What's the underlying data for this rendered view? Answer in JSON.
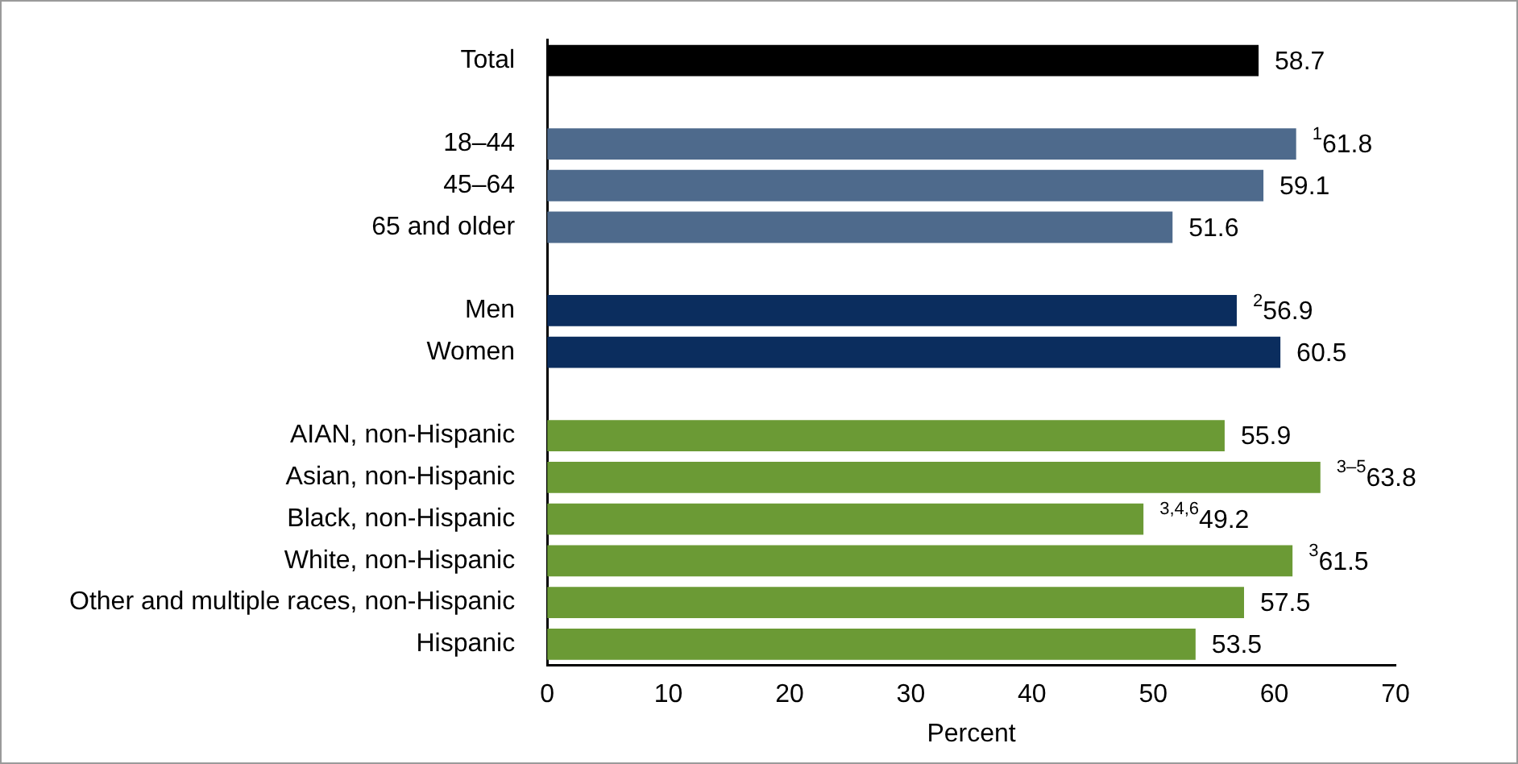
{
  "chart_data": {
    "type": "bar",
    "orientation": "horizontal",
    "xlabel": "Percent",
    "categories": [
      "Total",
      null,
      "18–44",
      "45–64",
      "65 and older",
      null,
      "Men",
      "Women",
      null,
      "AIAN, non-Hispanic",
      "Asian, non-Hispanic",
      "Black, non-Hispanic",
      "White, non-Hispanic",
      "Other and multiple races, non-Hispanic",
      "Hispanic"
    ],
    "values": [
      58.7,
      null,
      61.8,
      59.1,
      51.6,
      null,
      56.9,
      60.5,
      null,
      55.9,
      63.8,
      49.2,
      61.5,
      57.5,
      53.5
    ],
    "colors": [
      "#000000",
      null,
      "#4e6a8c",
      "#4e6a8c",
      "#4e6a8c",
      null,
      "#0b2d5e",
      "#0b2d5e",
      null,
      "#6b9a35",
      "#6b9a35",
      "#6b9a35",
      "#6b9a35",
      "#6b9a35",
      "#6b9a35"
    ],
    "value_labels": [
      "58.7",
      null,
      "$^{1}$61.8",
      "59.1",
      "51.6",
      null,
      "$^{2}$56.9",
      "60.5",
      null,
      "55.9",
      "$^{3–5}$63.8",
      "$^{3,4,6}$49.2",
      "$^{3}$61.5",
      "57.5",
      "53.5"
    ],
    "xlim": [
      0,
      70
    ],
    "xticks": [
      0,
      10,
      20,
      30,
      40,
      50,
      60,
      70
    ],
    "grid": false,
    "legend": false
  }
}
